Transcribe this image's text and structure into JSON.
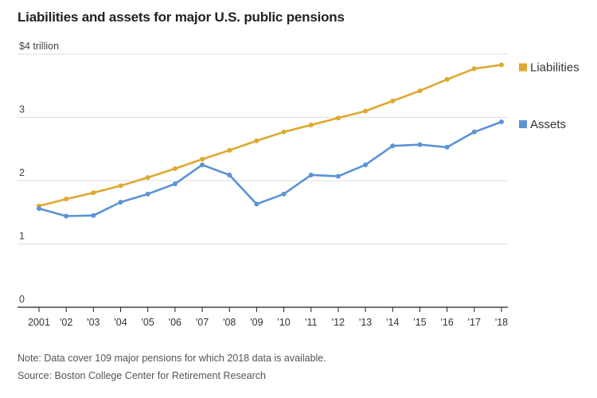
{
  "chart_data": {
    "type": "line",
    "title": "Liabilities and assets for major U.S. public pensions",
    "x": [
      "2001",
      "'02",
      "'03",
      "'04",
      "'05",
      "'06",
      "'07",
      "'08",
      "'09",
      "'10",
      "'11",
      "'12",
      "'13",
      "'14",
      "'15",
      "'16",
      "'17",
      "'18"
    ],
    "series": [
      {
        "name": "Liabilities",
        "color": "#e0a82e",
        "values": [
          1.6,
          1.71,
          1.81,
          1.92,
          2.05,
          2.19,
          2.34,
          2.48,
          2.63,
          2.77,
          2.88,
          2.99,
          3.1,
          3.26,
          3.42,
          3.6,
          3.77,
          3.83
        ]
      },
      {
        "name": "Assets",
        "color": "#5b93d6",
        "values": [
          1.56,
          1.44,
          1.45,
          1.66,
          1.79,
          1.95,
          2.25,
          2.09,
          1.63,
          1.79,
          2.09,
          2.07,
          2.25,
          2.55,
          2.57,
          2.53,
          2.77,
          2.93
        ]
      }
    ],
    "yticks": [
      {
        "value": 0,
        "label": "0"
      },
      {
        "value": 1,
        "label": "1"
      },
      {
        "value": 2,
        "label": "2"
      },
      {
        "value": 3,
        "label": "3"
      },
      {
        "value": 4,
        "label": "$4 trillion"
      }
    ],
    "ylim": [
      0,
      4
    ],
    "xlabel": "",
    "ylabel": "",
    "grid": true,
    "legend": "right, at line ends"
  },
  "notes": {
    "note": "Note: Data cover 109 major pensions for which 2018 data is available.",
    "source": "Source: Boston College Center for Retirement Research"
  }
}
